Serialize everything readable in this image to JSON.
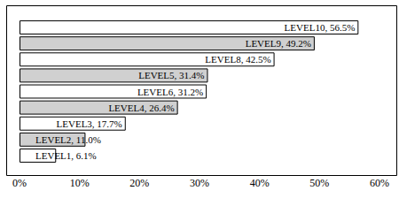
{
  "chart_data": {
    "type": "bar",
    "orientation": "horizontal",
    "categories": [
      "LEVEL10",
      "LEVEL9",
      "LEVEL8",
      "LEVEL5",
      "LEVEL6",
      "LEVEL4",
      "LEVEL3",
      "LEVEL2",
      "LEVEL1"
    ],
    "values": [
      56.5,
      49.2,
      42.5,
      31.4,
      31.2,
      26.4,
      17.7,
      11.0,
      6.1
    ],
    "value_labels": [
      "LEVEL10, 56.5%",
      "LEVEL9, 49.2%",
      "LEVEL8, 42.5%",
      "LEVEL5, 31.4%",
      "LEVEL6, 31.2%",
      "LEVEL4, 26.4%",
      "LEVEL3, 17.7%",
      "LEVEL2, 11.0%",
      "LEVEL1, 6.1%"
    ],
    "colors": [
      "#ffffff",
      "#d0d0d0",
      "#ffffff",
      "#d0d0d0",
      "#ffffff",
      "#d0d0d0",
      "#ffffff",
      "#d0d0d0",
      "#ffffff"
    ],
    "xlim": [
      0,
      60
    ],
    "xticks": [
      {
        "value": 0,
        "label": "0%"
      },
      {
        "value": 10,
        "label": "10%"
      },
      {
        "value": 20,
        "label": "20%"
      },
      {
        "value": 30,
        "label": "30%"
      },
      {
        "value": 40,
        "label": "40%"
      },
      {
        "value": 50,
        "label": "50%"
      },
      {
        "value": 60,
        "label": "60%"
      }
    ],
    "grid": false,
    "data_labels": true,
    "tick_labels": "x"
  }
}
